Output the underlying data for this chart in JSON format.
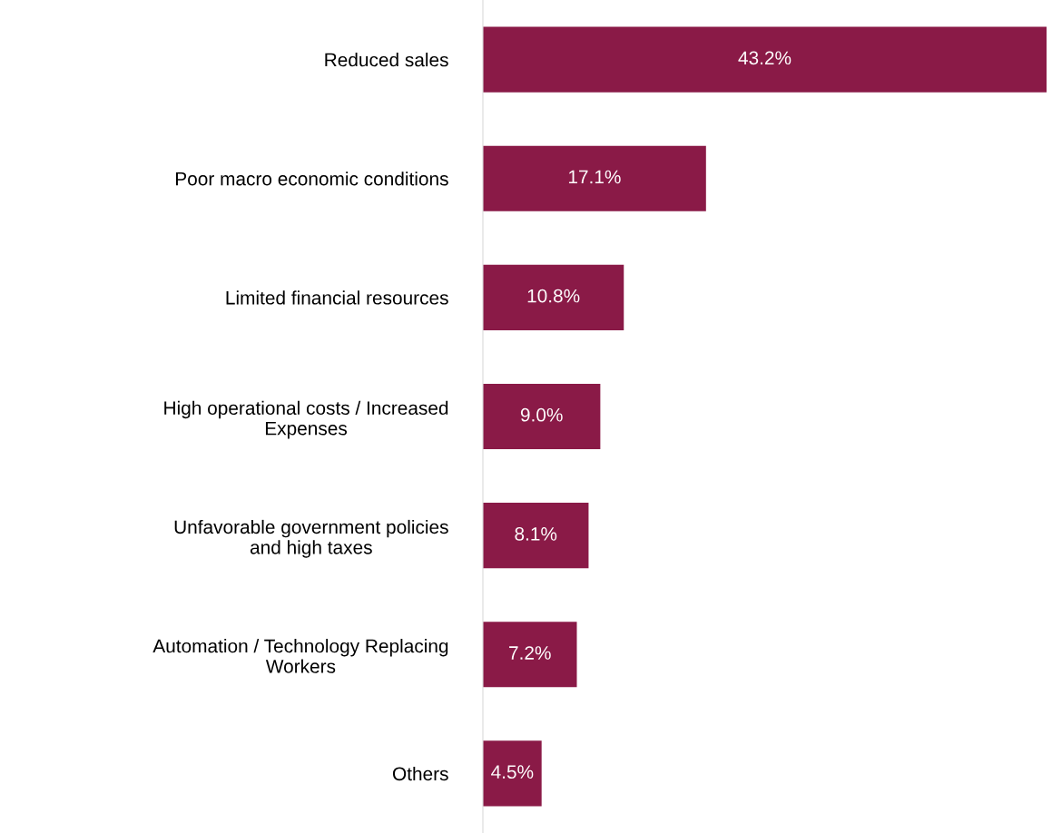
{
  "chart_data": {
    "type": "bar",
    "orientation": "horizontal",
    "categories": [
      "Reduced sales",
      "Poor macro economic conditions",
      "Limited financial resources",
      "High operational costs / Increased\nExpenses",
      "Unfavorable government policies\nand high taxes",
      "Automation / Technology Replacing\nWorkers",
      "Others"
    ],
    "values": [
      43.2,
      17.1,
      10.8,
      9.0,
      8.1,
      7.2,
      4.5
    ],
    "value_labels": [
      "43.2%",
      "17.1%",
      "10.8%",
      "9.0%",
      "8.1%",
      "7.2%",
      "4.5%"
    ],
    "color": "#8a1a47",
    "grid": false,
    "legend": false
  }
}
